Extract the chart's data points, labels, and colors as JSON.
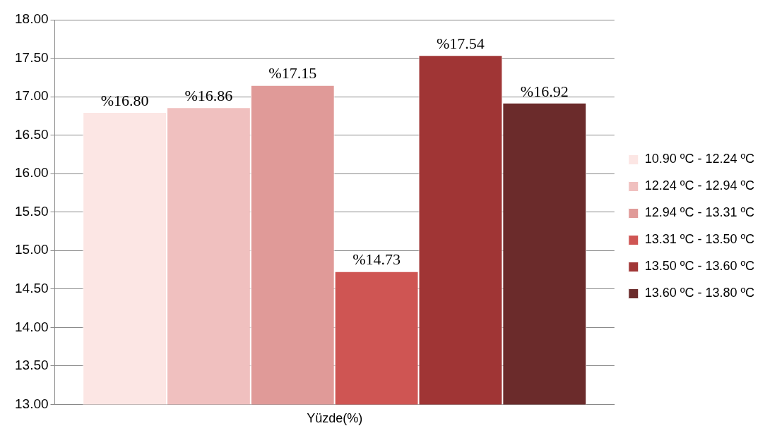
{
  "chart_data": {
    "type": "bar",
    "categories": [
      "Yüzde(%)"
    ],
    "series": [
      {
        "name": "10.90 ºC - 12.24 ºC",
        "color": "#fce6e4",
        "values": [
          16.8
        ],
        "value_labels": [
          "%16.80"
        ]
      },
      {
        "name": "12.24 ºC - 12.94 ºC",
        "color": "#f0c0bf",
        "values": [
          16.86
        ],
        "value_labels": [
          "%16.86"
        ]
      },
      {
        "name": "12.94 ºC - 13.31 ºC",
        "color": "#e09a98",
        "values": [
          17.15
        ],
        "value_labels": [
          "%17.15"
        ]
      },
      {
        "name": "13.31 ºC - 13.50 ºC",
        "color": "#cf5553",
        "values": [
          14.73
        ],
        "value_labels": [
          "%14.73"
        ]
      },
      {
        "name": "13.50 ºC - 13.60 ºC",
        "color": "#a03535",
        "values": [
          17.54
        ],
        "value_labels": [
          "%17.54"
        ]
      },
      {
        "name": "13.60 ºC - 13.80 ºC",
        "color": "#6b2b2b",
        "values": [
          16.92
        ],
        "value_labels": [
          "%16.92"
        ]
      }
    ],
    "ylim": [
      13,
      18
    ],
    "yticks": [
      {
        "value": 13,
        "label": "13.00"
      },
      {
        "value": 13.5,
        "label": "13.50"
      },
      {
        "value": 14,
        "label": "14.00"
      },
      {
        "value": 14.5,
        "label": "14.50"
      },
      {
        "value": 15,
        "label": "15.00"
      },
      {
        "value": 15.5,
        "label": "15.50"
      },
      {
        "value": 16,
        "label": "16.00"
      },
      {
        "value": 16.5,
        "label": "16.50"
      },
      {
        "value": 17,
        "label": "17.00"
      },
      {
        "value": 17.5,
        "label": "17.50"
      },
      {
        "value": 18,
        "label": "18.00"
      }
    ],
    "grid": "y",
    "legend": "right"
  }
}
